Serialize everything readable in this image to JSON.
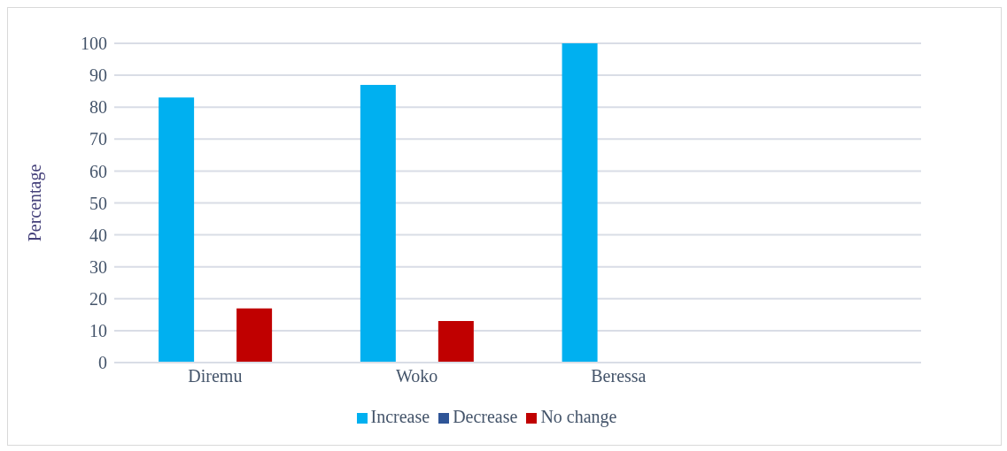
{
  "chart_data": {
    "type": "bar",
    "ylabel": "Percentage",
    "categories": [
      "Diremu",
      "Woko",
      "Beressa",
      null
    ],
    "series": [
      {
        "name": "Increase",
        "color": "#00b0f0",
        "values": [
          83,
          87,
          100,
          null
        ]
      },
      {
        "name": "Decrease",
        "color": "#2f5597",
        "values": [
          0,
          0,
          0,
          null
        ]
      },
      {
        "name": "No change",
        "color": "#c00000",
        "values": [
          17,
          13,
          0,
          null
        ]
      }
    ],
    "ylim": [
      0,
      100
    ],
    "yticks": [
      0,
      10,
      20,
      30,
      40,
      50,
      60,
      70,
      80,
      90,
      100
    ],
    "grid": "y",
    "legend": "bottom"
  }
}
